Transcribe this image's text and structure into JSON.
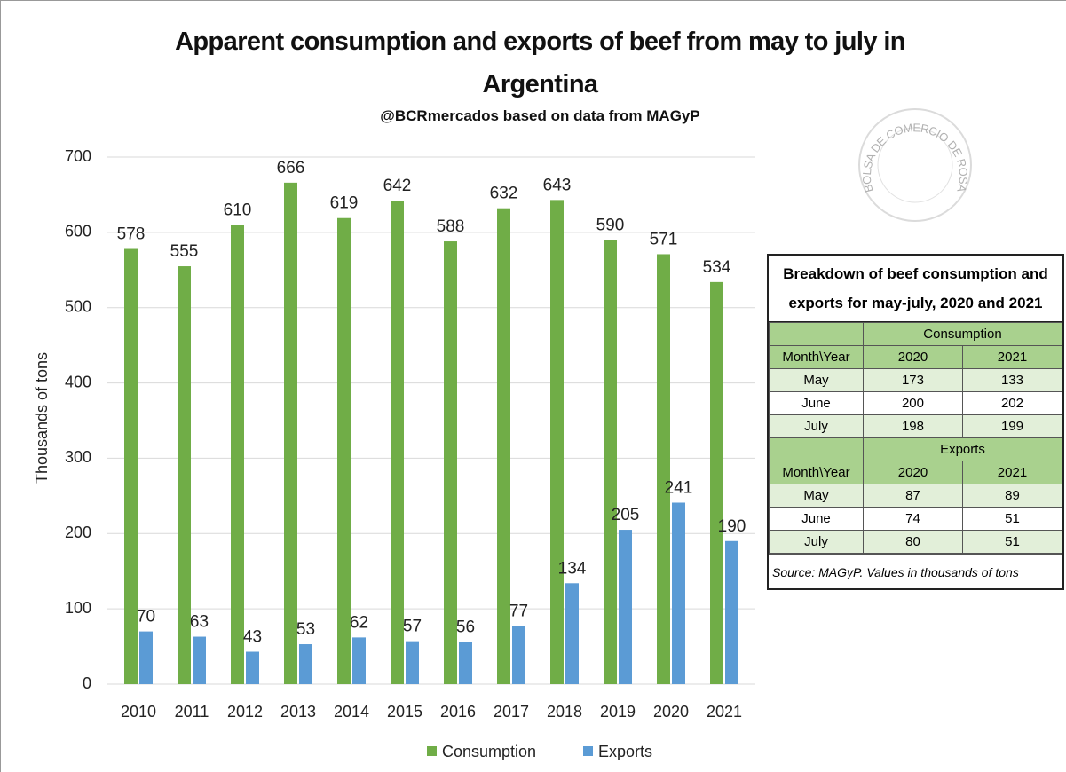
{
  "chart_data": {
    "type": "bar",
    "title": "Apparent consumption and exports of beef from may to july in Argentina",
    "subtitle": "@BCRmercados based on data from MAGyP",
    "y_label": "Thousands of tons",
    "categories": [
      "2010",
      "2011",
      "2012",
      "2013",
      "2014",
      "2015",
      "2016",
      "2017",
      "2018",
      "2019",
      "2020",
      "2021"
    ],
    "series": [
      {
        "name": "Consumption",
        "color": "#70ad47",
        "values": [
          578,
          555,
          610,
          666,
          619,
          642,
          588,
          632,
          643,
          590,
          571,
          534
        ]
      },
      {
        "name": "Exports",
        "color": "#5b9bd5",
        "values": [
          70,
          63,
          43,
          53,
          62,
          57,
          56,
          77,
          134,
          205,
          241,
          190
        ]
      }
    ],
    "ylim": [
      0,
      700
    ],
    "yticks": [
      0,
      100,
      200,
      300,
      400,
      500,
      600,
      700
    ],
    "grid": true,
    "legend": "bottom"
  },
  "watermark": "BOLSA DE COMERCIO DE ROSARIO",
  "table": {
    "title": "Breakdown of beef consumption and exports for may-july, 2020 and 2021",
    "sections": [
      {
        "name": "Consumption",
        "header": [
          "Month\\Year",
          "2020",
          "2021"
        ],
        "rows": [
          [
            "May",
            173,
            133
          ],
          [
            "June",
            200,
            202
          ],
          [
            "July",
            198,
            199
          ]
        ]
      },
      {
        "name": "Exports",
        "header": [
          "Month\\Year",
          "2020",
          "2021"
        ],
        "rows": [
          [
            "May",
            87,
            89
          ],
          [
            "June",
            74,
            51
          ],
          [
            "July",
            80,
            51
          ]
        ]
      }
    ],
    "source": "Source: MAGyP. Values in thousands of tons"
  }
}
